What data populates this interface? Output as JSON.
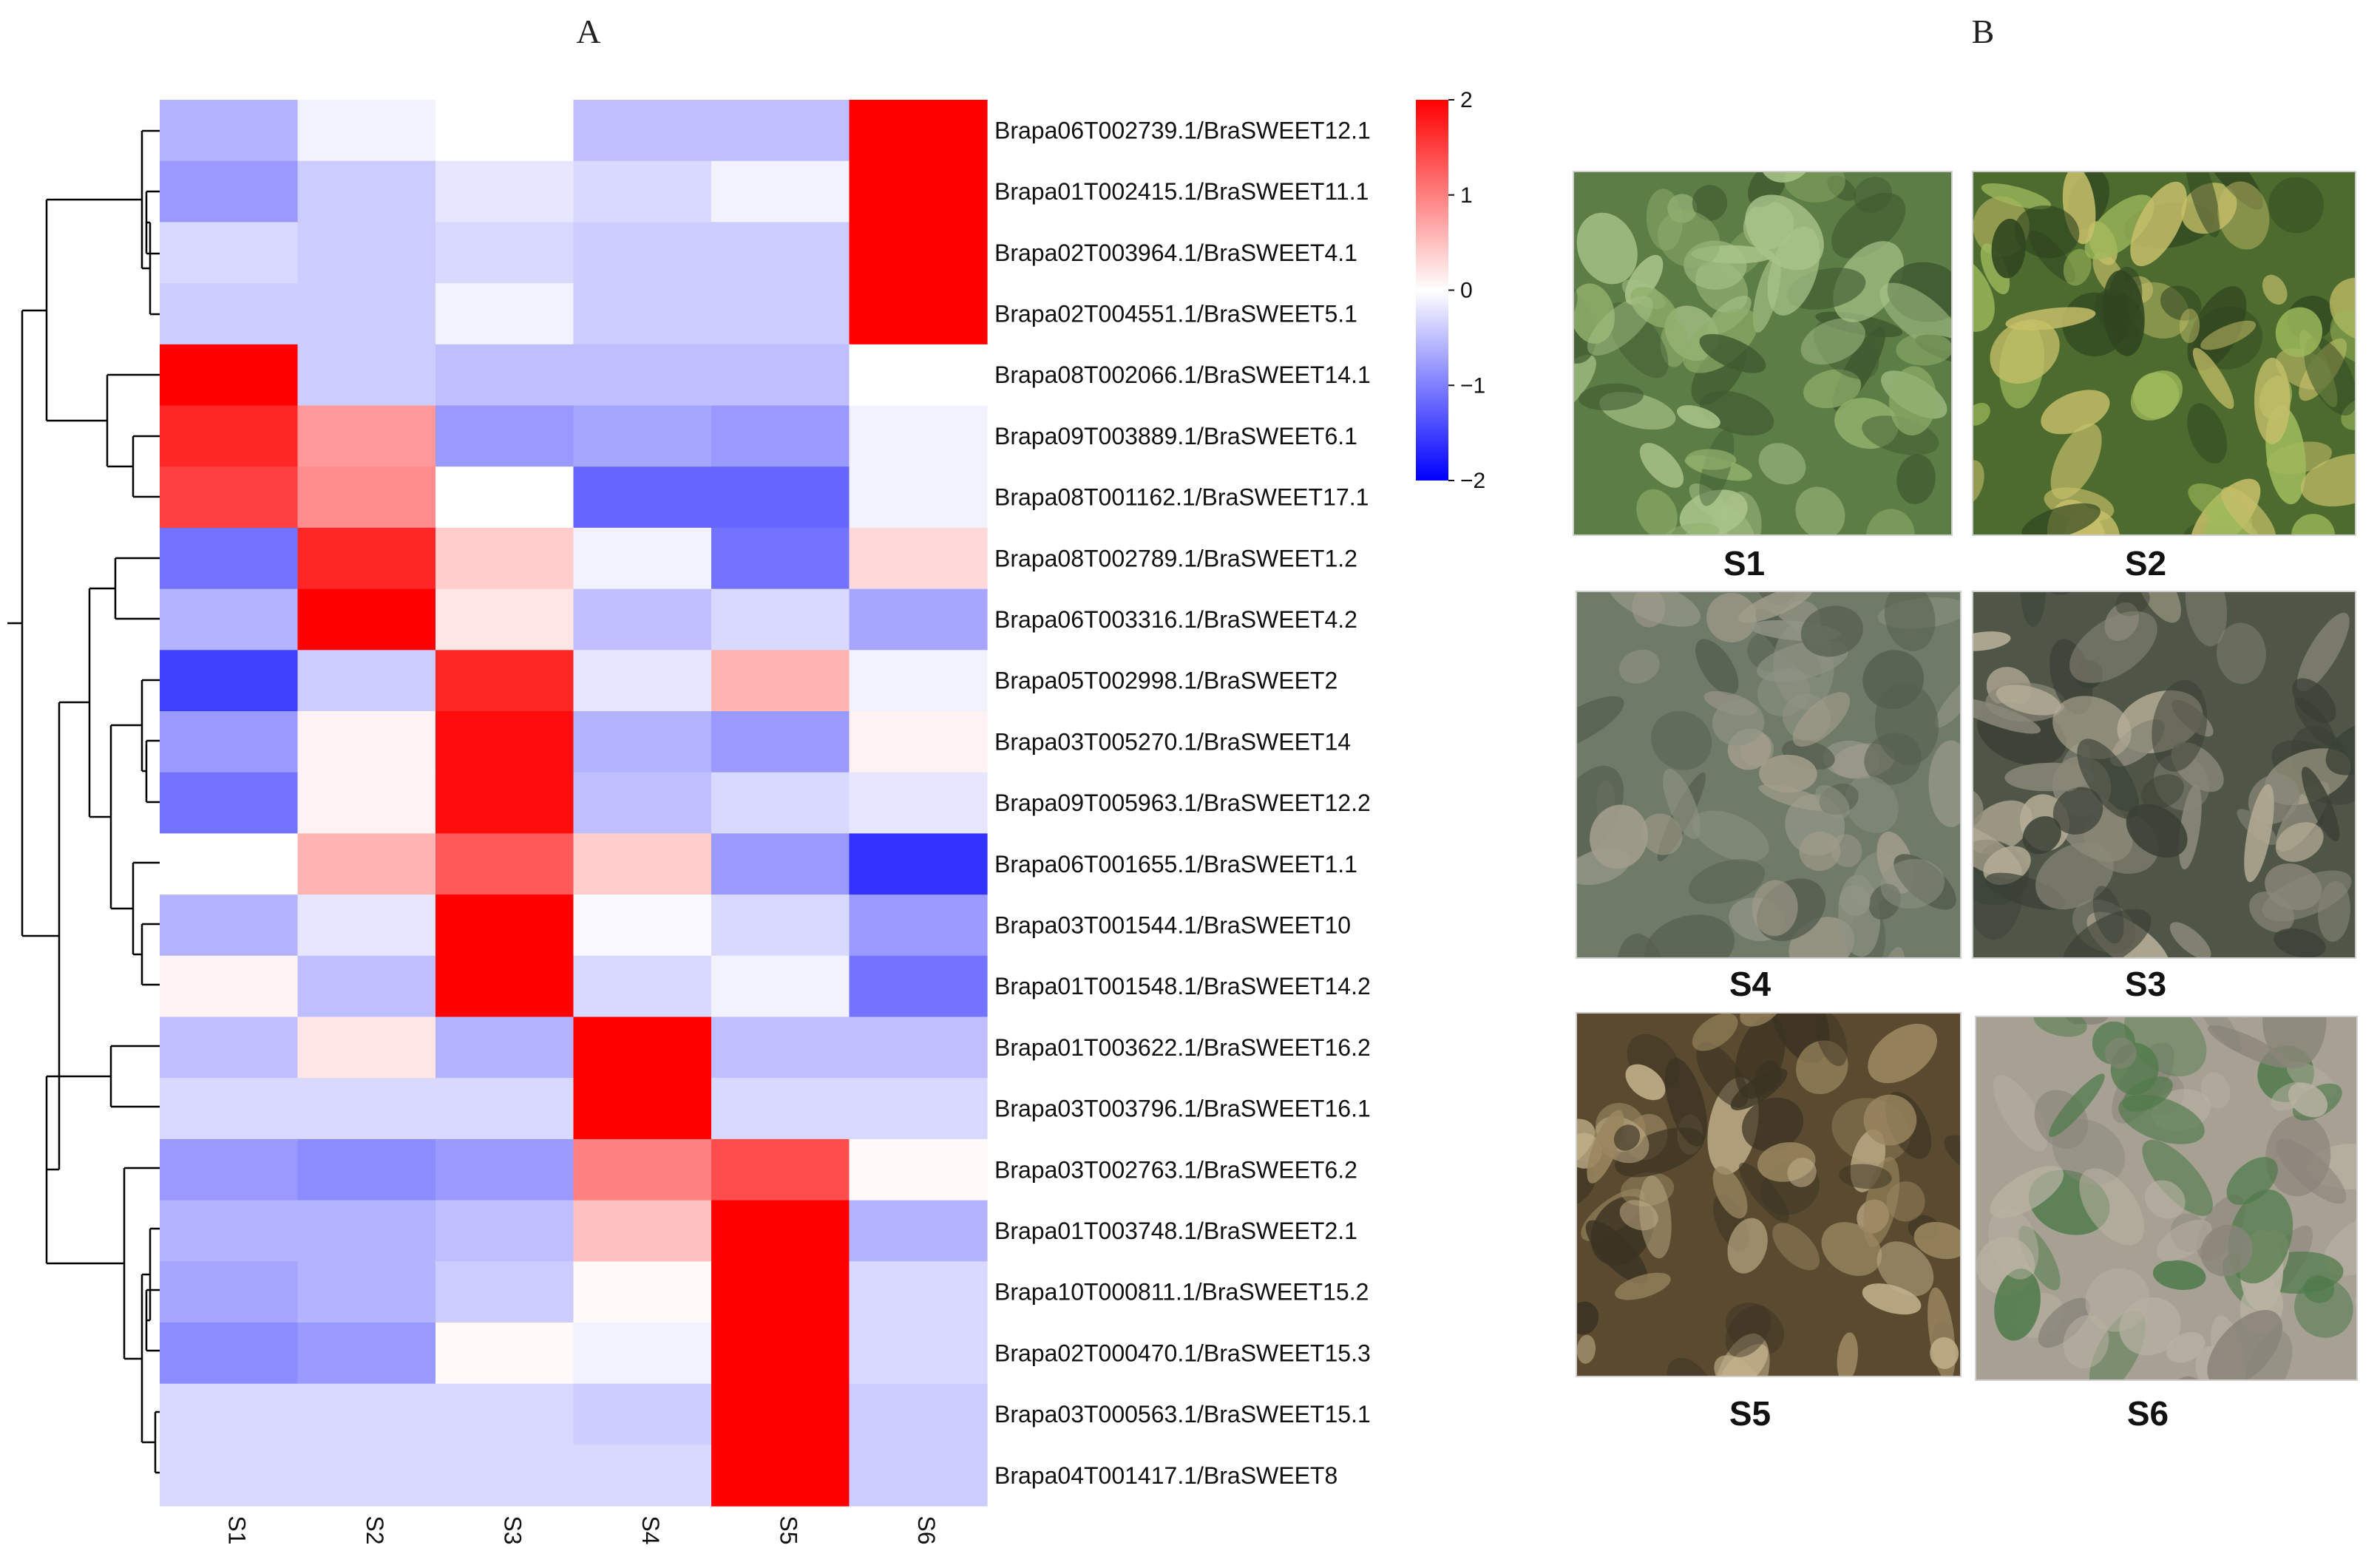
{
  "panels": {
    "a_label": "A",
    "b_label": "B"
  },
  "chart_data": {
    "type": "heatmap",
    "title": "",
    "columns": [
      "S1",
      "S2",
      "S3",
      "S4",
      "S5",
      "S6"
    ],
    "rows": [
      "Brapa06T002739.1/BraSWEET12.1",
      "Brapa01T002415.1/BraSWEET11.1",
      "Brapa02T003964.1/BraSWEET4.1",
      "Brapa02T004551.1/BraSWEET5.1",
      "Brapa08T002066.1/BraSWEET14.1",
      "Brapa09T003889.1/BraSWEET6.1",
      "Brapa08T001162.1/BraSWEET17.1",
      "Brapa08T002789.1/BraSWEET1.2",
      "Brapa06T003316.1/BraSWEET4.2",
      "Brapa05T002998.1/BraSWEET2",
      "Brapa03T005270.1/BraSWEET14",
      "Brapa09T005963.1/BraSWEET12.2",
      "Brapa06T001655.1/BraSWEET1.1",
      "Brapa03T001544.1/BraSWEET10",
      "Brapa01T001548.1/BraSWEET14.2",
      "Brapa01T003622.1/BraSWEET16.2",
      "Brapa03T003796.1/BraSWEET16.1",
      "Brapa03T002763.1/BraSWEET6.2",
      "Brapa01T003748.1/BraSWEET2.1",
      "Brapa10T000811.1/BraSWEET15.2",
      "Brapa02T000470.1/BraSWEET15.3",
      "Brapa03T000563.1/BraSWEET15.1",
      "Brapa04T001417.1/BraSWEET8"
    ],
    "values": [
      [
        -0.6,
        -0.1,
        0.0,
        -0.5,
        -0.5,
        2.0
      ],
      [
        -0.8,
        -0.4,
        -0.2,
        -0.3,
        -0.1,
        2.0
      ],
      [
        -0.3,
        -0.4,
        -0.3,
        -0.4,
        -0.4,
        2.0
      ],
      [
        -0.4,
        -0.4,
        -0.1,
        -0.4,
        -0.4,
        2.0
      ],
      [
        2.0,
        -0.4,
        -0.5,
        -0.5,
        -0.5,
        0.0
      ],
      [
        1.7,
        0.8,
        -0.8,
        -0.7,
        -0.8,
        -0.1
      ],
      [
        1.5,
        0.9,
        0.0,
        -1.2,
        -1.2,
        -0.1
      ],
      [
        -1.1,
        1.7,
        0.4,
        -0.1,
        -1.1,
        0.3
      ],
      [
        -0.6,
        2.0,
        0.2,
        -0.5,
        -0.3,
        -0.7
      ],
      [
        -1.5,
        -0.4,
        1.7,
        -0.2,
        0.6,
        -0.1
      ],
      [
        -0.8,
        0.1,
        1.9,
        -0.6,
        -0.8,
        0.1
      ],
      [
        -1.1,
        0.1,
        1.9,
        -0.5,
        -0.3,
        -0.2
      ],
      [
        0.0,
        0.6,
        1.3,
        0.4,
        -0.8,
        -1.6
      ],
      [
        -0.6,
        -0.2,
        2.0,
        -0.05,
        -0.3,
        -0.8
      ],
      [
        0.1,
        -0.5,
        2.0,
        -0.3,
        -0.1,
        -1.1
      ],
      [
        -0.5,
        0.2,
        -0.6,
        2.0,
        -0.5,
        -0.5
      ],
      [
        -0.3,
        -0.3,
        -0.3,
        2.0,
        -0.3,
        -0.3
      ],
      [
        -0.8,
        -0.9,
        -0.8,
        1.0,
        1.4,
        0.05
      ],
      [
        -0.6,
        -0.6,
        -0.5,
        0.5,
        2.0,
        -0.6
      ],
      [
        -0.7,
        -0.6,
        -0.4,
        0.05,
        2.0,
        -0.3
      ],
      [
        -0.9,
        -0.8,
        0.05,
        -0.1,
        2.0,
        -0.3
      ],
      [
        -0.3,
        -0.3,
        -0.3,
        -0.4,
        2.0,
        -0.4
      ],
      [
        -0.3,
        -0.3,
        -0.3,
        -0.3,
        2.0,
        -0.4
      ]
    ],
    "color_scale": {
      "min": -2,
      "max": 2,
      "low": "#0000ff",
      "mid": "#ffffff",
      "high": "#ff0000",
      "ticks": [
        2,
        1,
        0,
        -1,
        -2
      ]
    },
    "tick_labels": [
      "2",
      "1",
      "0",
      "−1",
      "−2"
    ]
  },
  "photos": [
    {
      "label": "S1",
      "stage": "dense green canopy",
      "colors": [
        "#5c7d45",
        "#8fae6b",
        "#3f5a30",
        "#a9c48a"
      ]
    },
    {
      "label": "S2",
      "stage": "green canopy with yellowing",
      "colors": [
        "#4d6b2e",
        "#9db95b",
        "#2f4520",
        "#c7c06a"
      ]
    },
    {
      "label": "S4",
      "stage": "wilted dull leaves",
      "colors": [
        "#6f7a68",
        "#8f9485",
        "#555e4f",
        "#a39d8c"
      ]
    },
    {
      "label": "S3",
      "stage": "wilted dark leaves",
      "colors": [
        "#4f5648",
        "#8a8878",
        "#3a4035",
        "#b7ae98"
      ]
    },
    {
      "label": "S5",
      "stage": "dried brown leaves",
      "colors": [
        "#5a4b30",
        "#9a8660",
        "#3b3322",
        "#c2b08a"
      ]
    },
    {
      "label": "S6",
      "stage": "soil with regrowth",
      "colors": [
        "#a7a194",
        "#b9b2a3",
        "#8a857a",
        "#4f7a4a"
      ]
    }
  ]
}
